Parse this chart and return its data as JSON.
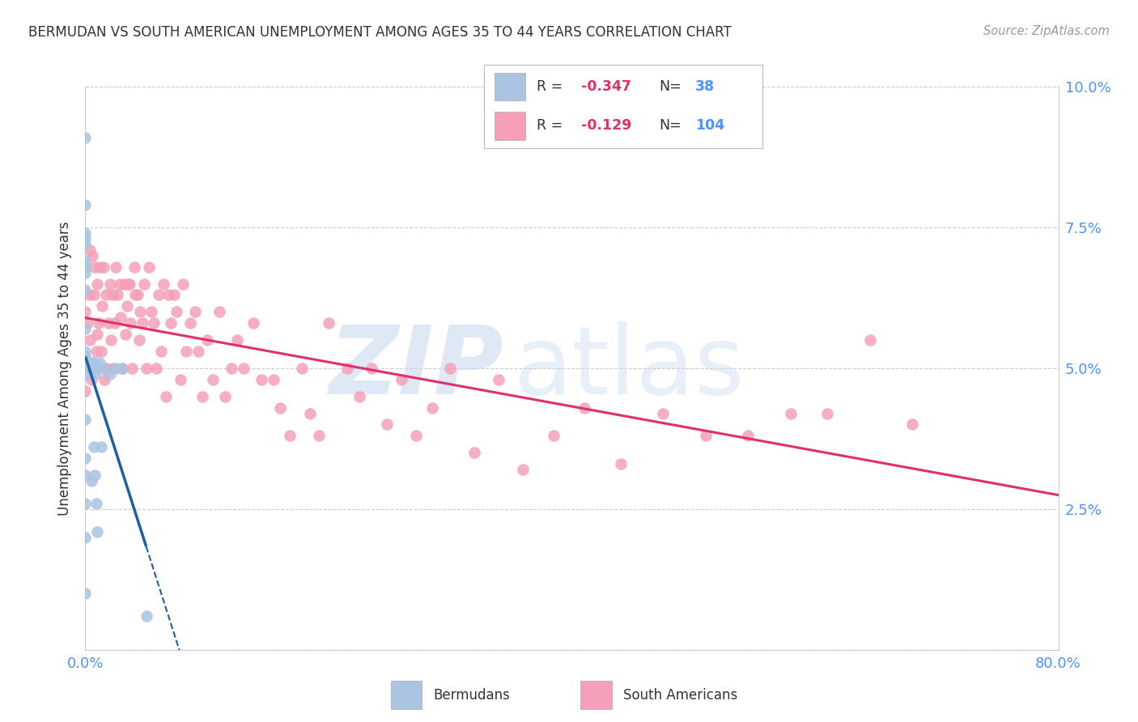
{
  "title": "BERMUDAN VS SOUTH AMERICAN UNEMPLOYMENT AMONG AGES 35 TO 44 YEARS CORRELATION CHART",
  "source": "Source: ZipAtlas.com",
  "ylabel": "Unemployment Among Ages 35 to 44 years",
  "xlim": [
    0.0,
    0.8
  ],
  "ylim": [
    0.0,
    0.1
  ],
  "legend_bermudan_R": "-0.347",
  "legend_bermudan_N": "38",
  "legend_sa_R": "-0.129",
  "legend_sa_N": "104",
  "bermudan_color": "#aac4e2",
  "bermudan_line_color": "#1a5fa8",
  "sa_color": "#f5a0b8",
  "sa_line_color": "#e0306a",
  "bermudan_x": [
    0.0,
    0.0,
    0.0,
    0.0,
    0.0,
    0.0,
    0.0,
    0.0,
    0.0,
    0.0,
    0.0,
    0.0,
    0.0,
    0.0,
    0.0,
    0.0,
    0.0,
    0.0,
    0.0,
    0.0,
    0.0,
    0.005,
    0.005,
    0.005,
    0.007,
    0.007,
    0.008,
    0.008,
    0.009,
    0.01,
    0.01,
    0.012,
    0.013,
    0.015,
    0.02,
    0.025,
    0.03,
    0.05
  ],
  "bermudan_y": [
    0.091,
    0.079,
    0.074,
    0.073,
    0.072,
    0.069,
    0.068,
    0.067,
    0.064,
    0.057,
    0.053,
    0.052,
    0.051,
    0.05,
    0.049,
    0.041,
    0.034,
    0.031,
    0.026,
    0.02,
    0.01,
    0.051,
    0.05,
    0.03,
    0.051,
    0.036,
    0.049,
    0.031,
    0.026,
    0.05,
    0.021,
    0.051,
    0.036,
    0.05,
    0.049,
    0.05,
    0.05,
    0.006
  ],
  "sa_x": [
    0.0,
    0.0,
    0.0,
    0.002,
    0.003,
    0.004,
    0.004,
    0.005,
    0.006,
    0.007,
    0.008,
    0.009,
    0.01,
    0.01,
    0.011,
    0.012,
    0.013,
    0.014,
    0.015,
    0.016,
    0.017,
    0.018,
    0.019,
    0.02,
    0.021,
    0.022,
    0.023,
    0.024,
    0.025,
    0.026,
    0.028,
    0.029,
    0.03,
    0.032,
    0.033,
    0.034,
    0.035,
    0.036,
    0.037,
    0.038,
    0.04,
    0.041,
    0.043,
    0.044,
    0.045,
    0.047,
    0.048,
    0.05,
    0.052,
    0.054,
    0.056,
    0.058,
    0.06,
    0.062,
    0.064,
    0.066,
    0.068,
    0.07,
    0.073,
    0.075,
    0.078,
    0.08,
    0.083,
    0.086,
    0.09,
    0.093,
    0.096,
    0.1,
    0.105,
    0.11,
    0.115,
    0.12,
    0.125,
    0.13,
    0.138,
    0.145,
    0.155,
    0.16,
    0.168,
    0.178,
    0.185,
    0.192,
    0.2,
    0.215,
    0.225,
    0.235,
    0.248,
    0.26,
    0.272,
    0.285,
    0.3,
    0.32,
    0.34,
    0.36,
    0.385,
    0.41,
    0.44,
    0.475,
    0.51,
    0.545,
    0.58,
    0.61,
    0.645,
    0.68
  ],
  "sa_y": [
    0.06,
    0.052,
    0.046,
    0.058,
    0.063,
    0.055,
    0.071,
    0.048,
    0.07,
    0.063,
    0.068,
    0.053,
    0.065,
    0.056,
    0.058,
    0.068,
    0.053,
    0.061,
    0.068,
    0.048,
    0.063,
    0.05,
    0.058,
    0.065,
    0.055,
    0.063,
    0.05,
    0.058,
    0.068,
    0.063,
    0.065,
    0.059,
    0.05,
    0.065,
    0.056,
    0.061,
    0.065,
    0.065,
    0.058,
    0.05,
    0.068,
    0.063,
    0.063,
    0.055,
    0.06,
    0.058,
    0.065,
    0.05,
    0.068,
    0.06,
    0.058,
    0.05,
    0.063,
    0.053,
    0.065,
    0.045,
    0.063,
    0.058,
    0.063,
    0.06,
    0.048,
    0.065,
    0.053,
    0.058,
    0.06,
    0.053,
    0.045,
    0.055,
    0.048,
    0.06,
    0.045,
    0.05,
    0.055,
    0.05,
    0.058,
    0.048,
    0.048,
    0.043,
    0.038,
    0.05,
    0.042,
    0.038,
    0.058,
    0.05,
    0.045,
    0.05,
    0.04,
    0.048,
    0.038,
    0.043,
    0.05,
    0.035,
    0.048,
    0.032,
    0.038,
    0.043,
    0.033,
    0.042,
    0.038,
    0.038,
    0.042,
    0.042,
    0.055,
    0.04
  ],
  "background_color": "#ffffff",
  "grid_color": "#cccccc",
  "title_color": "#333333",
  "axis_label_color": "#4d94ff"
}
